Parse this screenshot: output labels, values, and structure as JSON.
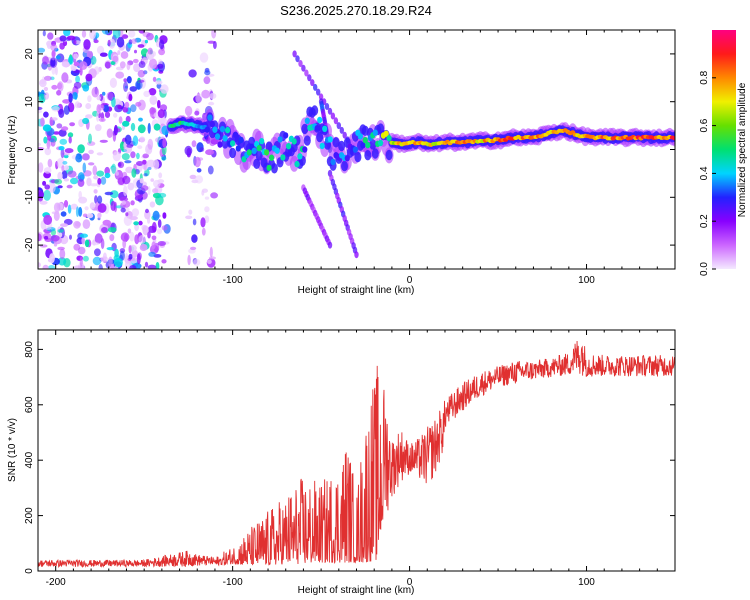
{
  "figure": {
    "title": "S236.2025.270.18.29.R24"
  },
  "chart_data": [
    {
      "type": "heatmap",
      "title": "S236.2025.270.18.29.R24",
      "xlabel": "Height of straight line (km)",
      "ylabel": "Frequency (Hz)",
      "xlim": [
        -210,
        150
      ],
      "ylim": [
        -25,
        25
      ],
      "xticks": [
        -200,
        -100,
        0,
        100
      ],
      "yticks": [
        -20,
        -10,
        0,
        10,
        20
      ],
      "xtick_labels": [
        "-200",
        "-100",
        "0",
        "100"
      ],
      "ytick_labels": [
        "-20",
        "-10",
        "0",
        "10",
        "20"
      ],
      "colorbar": {
        "label": "Normalized spectral amplitude",
        "range": [
          0,
          1
        ],
        "ticks": [
          0.0,
          0.2,
          0.4,
          0.6,
          0.8
        ],
        "tick_labels": [
          "0.0",
          "0.2",
          "0.4",
          "0.6",
          "0.8"
        ],
        "colors": [
          "#f4e9ff",
          "#cc66ff",
          "#8800ff",
          "#2222ff",
          "#00d4ff",
          "#00e070",
          "#66e000",
          "#f0f000",
          "#ff8800",
          "#ff1a1a",
          "#ff0080"
        ]
      },
      "ridge": [
        {
          "x": -135,
          "f": 5.0,
          "a": 0.55
        },
        {
          "x": -128,
          "f": 5.5,
          "a": 0.5
        },
        {
          "x": -120,
          "f": 5.0,
          "a": 0.4
        },
        {
          "x": -110,
          "f": 4.0,
          "a": 0.35
        },
        {
          "x": -100,
          "f": 2.0,
          "a": 0.35
        },
        {
          "x": -92,
          "f": -1.0,
          "a": 0.4
        },
        {
          "x": -85,
          "f": 0.0,
          "a": 0.4
        },
        {
          "x": -78,
          "f": -2.0,
          "a": 0.45
        },
        {
          "x": -70,
          "f": 1.0,
          "a": 0.35
        },
        {
          "x": -62,
          "f": -1.0,
          "a": 0.4
        },
        {
          "x": -55,
          "f": 7.0,
          "a": 0.35
        },
        {
          "x": -48,
          "f": 2.0,
          "a": 0.35
        },
        {
          "x": -40,
          "f": -2.0,
          "a": 0.35
        },
        {
          "x": -32,
          "f": 1.0,
          "a": 0.3
        },
        {
          "x": -25,
          "f": 1.5,
          "a": 0.4
        },
        {
          "x": -18,
          "f": 1.8,
          "a": 0.55
        },
        {
          "x": -10,
          "f": 1.5,
          "a": 0.7
        },
        {
          "x": -3,
          "f": 1.2,
          "a": 0.75
        },
        {
          "x": 5,
          "f": 1.5,
          "a": 0.8
        },
        {
          "x": 12,
          "f": 1.0,
          "a": 0.7
        },
        {
          "x": 20,
          "f": 1.5,
          "a": 0.75
        },
        {
          "x": 30,
          "f": 1.5,
          "a": 0.85
        },
        {
          "x": 40,
          "f": 1.8,
          "a": 0.75
        },
        {
          "x": 50,
          "f": 2.0,
          "a": 0.8
        },
        {
          "x": 60,
          "f": 2.5,
          "a": 0.85
        },
        {
          "x": 70,
          "f": 2.5,
          "a": 0.8
        },
        {
          "x": 80,
          "f": 3.5,
          "a": 0.75
        },
        {
          "x": 88,
          "f": 4.0,
          "a": 0.9
        },
        {
          "x": 95,
          "f": 3.0,
          "a": 0.75
        },
        {
          "x": 105,
          "f": 2.5,
          "a": 0.8
        },
        {
          "x": 115,
          "f": 2.5,
          "a": 0.8
        },
        {
          "x": 125,
          "f": 2.5,
          "a": 0.85
        },
        {
          "x": 135,
          "f": 2.5,
          "a": 0.85
        },
        {
          "x": 150,
          "f": 2.5,
          "a": 0.85
        }
      ],
      "noise_regions": [
        {
          "x0": -210,
          "x1": -137,
          "f0": -25,
          "f1": 25,
          "density": "high",
          "a": 0.3
        },
        {
          "x0": -125,
          "x1": -110,
          "f0": -25,
          "f1": 25,
          "density": "low",
          "a": 0.2
        }
      ],
      "arcs": [
        {
          "from": [
            -65,
            20
          ],
          "to": [
            -35,
            2
          ],
          "a": 0.25
        },
        {
          "from": [
            -50,
            10
          ],
          "to": [
            -45,
            0
          ],
          "a": 0.3
        },
        {
          "from": [
            -45,
            -5
          ],
          "to": [
            -30,
            -22
          ],
          "a": 0.25
        },
        {
          "from": [
            -60,
            -8
          ],
          "to": [
            -45,
            -20
          ],
          "a": 0.2
        }
      ]
    },
    {
      "type": "line",
      "xlabel": "Height of straight line (km)",
      "ylabel": "SNR (10 * v/v)",
      "xlim": [
        -210,
        150
      ],
      "ylim": [
        0,
        870
      ],
      "xticks": [
        -200,
        -100,
        0,
        100
      ],
      "yticks": [
        0,
        200,
        400,
        600,
        800
      ],
      "xtick_labels": [
        "-200",
        "-100",
        "0",
        "100"
      ],
      "ytick_labels": [
        "0",
        "200",
        "400",
        "600",
        "800"
      ],
      "series": [
        {
          "name": "SNR",
          "color": "#e03030",
          "envelope": {
            "x": [
              -210,
              -180,
              -150,
              -125,
              -120,
              -110,
              -100,
              -90,
              -80,
              -70,
              -60,
              -50,
              -40,
              -35,
              -30,
              -25,
              -18,
              -16,
              -10,
              -5,
              0,
              5,
              10,
              15,
              20,
              30,
              40,
              50,
              60,
              70,
              80,
              90,
              97,
              100,
              110,
              120,
              130,
              140,
              150
            ],
            "low": [
              15,
              15,
              15,
              15,
              18,
              20,
              25,
              20,
              20,
              25,
              25,
              30,
              30,
              30,
              30,
              30,
              40,
              140,
              260,
              320,
              350,
              330,
              300,
              350,
              450,
              520,
              580,
              620,
              630,
              650,
              660,
              660,
              620,
              650,
              660,
              660,
              660,
              660,
              660
            ],
            "high": [
              40,
              40,
              40,
              75,
              60,
              50,
              90,
              160,
              220,
              280,
              350,
              320,
              400,
              500,
              280,
              580,
              760,
              740,
              480,
              520,
              460,
              480,
              520,
              560,
              620,
              680,
              720,
              740,
              760,
              760,
              770,
              790,
              870,
              790,
              780,
              780,
              780,
              780,
              780
            ]
          }
        }
      ]
    }
  ]
}
